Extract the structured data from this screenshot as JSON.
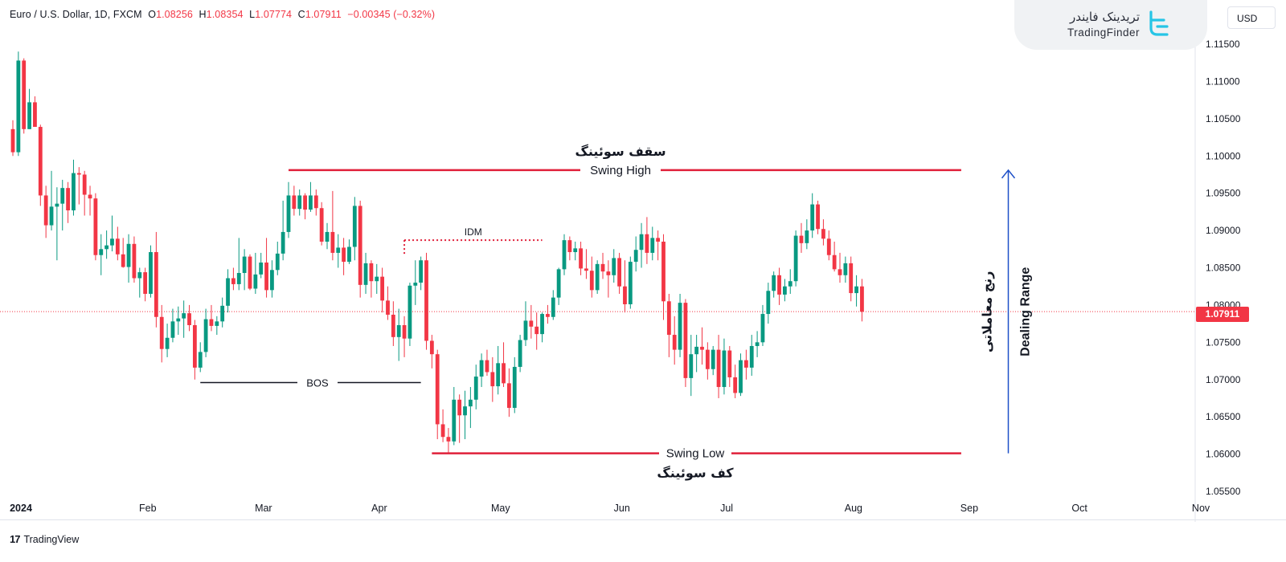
{
  "header": {
    "symbol": "Euro / U.S. Dollar, 1D, FXCM",
    "open_label": "O",
    "open": "1.08256",
    "high_label": "H",
    "high": "1.08354",
    "low_label": "L",
    "low": "1.07774",
    "close_label": "C",
    "close": "1.07911",
    "change": "−0.00345 (−0.32%)"
  },
  "currency_button": "USD",
  "brand": {
    "name_fa": "تریدینک فایندر",
    "name_en": "TradingFinder"
  },
  "footer": {
    "icon": "17",
    "label": "TradingView"
  },
  "last_price_tag": "1.07911",
  "colors": {
    "up": "#089981",
    "down": "#f23645",
    "level": "#e0203a",
    "arrow": "#1e50c8"
  },
  "annotations": {
    "swing_high_fa": "سقف سوئینگ",
    "swing_high_en": "Swing High",
    "swing_low_fa": "کف سوئینگ",
    "swing_low_en": "Swing Low",
    "idm": "IDM",
    "bos": "BOS",
    "range_fa": "رنج معاملاتی",
    "range_en": "Dealing Range"
  },
  "chart_data": {
    "type": "candlestick",
    "symbol": "EURUSD",
    "ylim": [
      1.053,
      1.1185
    ],
    "y_ticks": [
      "1.11500",
      "1.11000",
      "1.10500",
      "1.10000",
      "1.09500",
      "1.09000",
      "1.08500",
      "1.08000",
      "1.07500",
      "1.07000",
      "1.06500",
      "1.06000",
      "1.05500"
    ],
    "x_ticks": [
      {
        "label": "2024",
        "index": 0
      },
      {
        "label": "Feb",
        "index": 23
      },
      {
        "label": "Mar",
        "index": 44
      },
      {
        "label": "Apr",
        "index": 65
      },
      {
        "label": "May",
        "index": 87
      },
      {
        "label": "Jun",
        "index": 109
      },
      {
        "label": "Jul",
        "index": 128
      },
      {
        "label": "Aug",
        "index": 151
      },
      {
        "label": "Sep",
        "index": 172
      },
      {
        "label": "Oct",
        "index": 192
      },
      {
        "label": "Nov",
        "index": 214
      }
    ],
    "last_price": 1.07911,
    "levels": {
      "swing_high": {
        "price": 1.0981,
        "from_index": 50,
        "to_index": 172
      },
      "swing_low": {
        "price": 1.0601,
        "from_index": 76,
        "to_index": 172
      },
      "idm": {
        "price": 1.0887,
        "from_index": 71,
        "to_index": 96
      },
      "bos": {
        "price": 1.0696,
        "from_index": 34,
        "to_index": 74
      },
      "dealing_range": {
        "from": 1.0601,
        "to": 1.0981,
        "index": 175
      }
    },
    "ohlc": [
      [
        1.1036,
        1.1048,
        1.1,
        1.1005
      ],
      [
        1.1005,
        1.114,
        1.1,
        1.1128
      ],
      [
        1.1128,
        1.1131,
        1.103,
        1.1036
      ],
      [
        1.1036,
        1.109,
        1.1036,
        1.1072
      ],
      [
        1.1072,
        1.108,
        1.104,
        1.1039
      ],
      [
        1.1039,
        1.1042,
        1.0933,
        1.0947
      ],
      [
        1.0947,
        1.096,
        1.089,
        1.0907
      ],
      [
        1.0907,
        1.098,
        1.09,
        1.0932
      ],
      [
        1.0932,
        1.0958,
        1.086,
        1.0936
      ],
      [
        1.0936,
        1.0968,
        1.09,
        1.0957
      ],
      [
        1.0957,
        1.0965,
        1.091,
        1.0927
      ],
      [
        1.0927,
        1.0995,
        1.092,
        1.0977
      ],
      [
        1.0977,
        1.0985,
        1.0935,
        1.0975
      ],
      [
        1.0975,
        1.098,
        1.092,
        1.0948
      ],
      [
        1.0948,
        1.096,
        1.092,
        1.0943
      ],
      [
        1.0943,
        1.095,
        1.086,
        1.0867
      ],
      [
        1.0867,
        1.0895,
        1.084,
        1.0875
      ],
      [
        1.0875,
        1.09,
        1.0862,
        1.088
      ],
      [
        1.088,
        1.092,
        1.0872,
        1.0889
      ],
      [
        1.0889,
        1.0905,
        1.086,
        1.0868
      ],
      [
        1.0868,
        1.089,
        1.085,
        1.0851
      ],
      [
        1.0851,
        1.0895,
        1.083,
        1.0882
      ],
      [
        1.0882,
        1.0892,
        1.083,
        1.0836
      ],
      [
        1.0836,
        1.085,
        1.081,
        1.0844
      ],
      [
        1.0844,
        1.085,
        1.0805,
        1.0815
      ],
      [
        1.0815,
        1.088,
        1.081,
        1.0871
      ],
      [
        1.0871,
        1.0898,
        1.077,
        1.0784
      ],
      [
        1.0784,
        1.08,
        1.0723,
        1.0741
      ],
      [
        1.0741,
        1.0775,
        1.073,
        1.0756
      ],
      [
        1.0756,
        1.0795,
        1.075,
        1.0778
      ],
      [
        1.0778,
        1.0798,
        1.076,
        1.0782
      ],
      [
        1.0782,
        1.0806,
        1.0756,
        1.0789
      ],
      [
        1.0789,
        1.08,
        1.0765,
        1.0773
      ],
      [
        1.0773,
        1.078,
        1.07,
        1.0716
      ],
      [
        1.0716,
        1.075,
        1.071,
        1.0737
      ],
      [
        1.0737,
        1.0795,
        1.073,
        1.0781
      ],
      [
        1.0781,
        1.08,
        1.0765,
        1.0772
      ],
      [
        1.0772,
        1.0785,
        1.076,
        1.0778
      ],
      [
        1.0778,
        1.081,
        1.077,
        1.0799
      ],
      [
        1.0799,
        1.0848,
        1.079,
        1.0836
      ],
      [
        1.0836,
        1.085,
        1.082,
        1.0828
      ],
      [
        1.0828,
        1.089,
        1.082,
        1.0843
      ],
      [
        1.0843,
        1.0875,
        1.082,
        1.0865
      ],
      [
        1.0865,
        1.0868,
        1.082,
        1.0822
      ],
      [
        1.0822,
        1.087,
        1.0815,
        1.0841
      ],
      [
        1.0841,
        1.087,
        1.0836,
        1.0857
      ],
      [
        1.0857,
        1.089,
        1.081,
        1.082
      ],
      [
        1.082,
        1.086,
        1.081,
        1.0847
      ],
      [
        1.0847,
        1.0885,
        1.084,
        1.0869
      ],
      [
        1.0869,
        1.094,
        1.086,
        1.0898
      ],
      [
        1.0898,
        1.0965,
        1.089,
        1.0947
      ],
      [
        1.0947,
        1.096,
        1.092,
        1.0929
      ],
      [
        1.0929,
        1.0955,
        1.092,
        1.0947
      ],
      [
        1.0947,
        1.095,
        1.0915,
        1.0928
      ],
      [
        1.0928,
        1.0965,
        1.0925,
        1.0947
      ],
      [
        1.0947,
        1.0955,
        1.092,
        1.093
      ],
      [
        1.093,
        1.0938,
        1.088,
        1.0885
      ],
      [
        1.0885,
        1.091,
        1.0875,
        1.0898
      ],
      [
        1.0898,
        1.0953,
        1.086,
        1.087
      ],
      [
        1.087,
        1.0895,
        1.085,
        1.0877
      ],
      [
        1.0877,
        1.089,
        1.084,
        1.0858
      ],
      [
        1.0858,
        1.0888,
        1.0855,
        1.0878
      ],
      [
        1.0878,
        1.0945,
        1.086,
        1.0933
      ],
      [
        1.0933,
        1.094,
        1.081,
        1.0827
      ],
      [
        1.0827,
        1.087,
        1.0815,
        1.0856
      ],
      [
        1.0856,
        1.086,
        1.081,
        1.0832
      ],
      [
        1.0832,
        1.0855,
        1.0815,
        1.0838
      ],
      [
        1.0838,
        1.085,
        1.079,
        1.0806
      ],
      [
        1.0806,
        1.0825,
        1.078,
        1.0787
      ],
      [
        1.0787,
        1.0805,
        1.0745,
        1.0757
      ],
      [
        1.0757,
        1.0795,
        1.0725,
        1.0773
      ],
      [
        1.0773,
        1.0785,
        1.073,
        1.0755
      ],
      [
        1.0755,
        1.083,
        1.0745,
        1.0826
      ],
      [
        1.0826,
        1.086,
        1.08,
        1.083
      ],
      [
        1.083,
        1.0865,
        1.082,
        1.086
      ],
      [
        1.086,
        1.087,
        1.074,
        1.0752
      ],
      [
        1.0752,
        1.076,
        1.0715,
        1.0734
      ],
      [
        1.0734,
        1.074,
        1.062,
        1.064
      ],
      [
        1.064,
        1.066,
        1.0616,
        1.0623
      ],
      [
        1.0623,
        1.0635,
        1.06,
        1.0617
      ],
      [
        1.0617,
        1.069,
        1.0612,
        1.0673
      ],
      [
        1.0673,
        1.068,
        1.0615,
        1.0652
      ],
      [
        1.0652,
        1.0685,
        1.062,
        1.0664
      ],
      [
        1.0664,
        1.069,
        1.0635,
        1.0673
      ],
      [
        1.0673,
        1.072,
        1.066,
        1.0704
      ],
      [
        1.0704,
        1.0735,
        1.069,
        1.0726
      ],
      [
        1.0726,
        1.074,
        1.0705,
        1.071
      ],
      [
        1.071,
        1.073,
        1.067,
        1.0691
      ],
      [
        1.0691,
        1.0745,
        1.068,
        1.0722
      ],
      [
        1.0722,
        1.075,
        1.069,
        1.0695
      ],
      [
        1.0695,
        1.0715,
        1.065,
        1.0662
      ],
      [
        1.0662,
        1.073,
        1.0655,
        1.0717
      ],
      [
        1.0717,
        1.076,
        1.071,
        1.0753
      ],
      [
        1.0753,
        1.0805,
        1.0745,
        1.0779
      ],
      [
        1.0779,
        1.08,
        1.0755,
        1.0771
      ],
      [
        1.0771,
        1.079,
        1.074,
        1.0761
      ],
      [
        1.0761,
        1.079,
        1.075,
        1.0788
      ],
      [
        1.0788,
        1.08,
        1.0775,
        1.0784
      ],
      [
        1.0784,
        1.082,
        1.078,
        1.081
      ],
      [
        1.081,
        1.085,
        1.08,
        1.0848
      ],
      [
        1.0848,
        1.0895,
        1.084,
        1.0887
      ],
      [
        1.0887,
        1.0892,
        1.086,
        1.0871
      ],
      [
        1.0871,
        1.0885,
        1.086,
        1.0876
      ],
      [
        1.0876,
        1.0885,
        1.084,
        1.0849
      ],
      [
        1.0849,
        1.0875,
        1.0835,
        1.0846
      ],
      [
        1.0846,
        1.0865,
        1.081,
        1.082
      ],
      [
        1.082,
        1.086,
        1.0815,
        1.0855
      ],
      [
        1.0855,
        1.087,
        1.0835,
        1.0845
      ],
      [
        1.0845,
        1.086,
        1.081,
        1.084
      ],
      [
        1.084,
        1.0875,
        1.083,
        1.0863
      ],
      [
        1.0863,
        1.087,
        1.0815,
        1.0825
      ],
      [
        1.0825,
        1.086,
        1.079,
        1.0801
      ],
      [
        1.0801,
        1.0865,
        1.0795,
        1.0858
      ],
      [
        1.0858,
        1.0892,
        1.0845,
        1.0874
      ],
      [
        1.0874,
        1.091,
        1.085,
        1.0895
      ],
      [
        1.0895,
        1.0918,
        1.0855,
        1.087
      ],
      [
        1.087,
        1.0905,
        1.086,
        1.089
      ],
      [
        1.089,
        1.09,
        1.086,
        1.0885
      ],
      [
        1.0885,
        1.0895,
        1.078,
        1.0805
      ],
      [
        1.0805,
        1.0815,
        1.073,
        1.076
      ],
      [
        1.076,
        1.0785,
        1.072,
        1.074
      ],
      [
        1.074,
        1.0815,
        1.073,
        1.0803
      ],
      [
        1.0803,
        1.0808,
        1.069,
        1.0702
      ],
      [
        1.0702,
        1.076,
        1.0678,
        1.0734
      ],
      [
        1.0734,
        1.076,
        1.071,
        1.0744
      ],
      [
        1.0744,
        1.077,
        1.072,
        1.074
      ],
      [
        1.074,
        1.075,
        1.07,
        1.0714
      ],
      [
        1.0714,
        1.0745,
        1.0706,
        1.074
      ],
      [
        1.074,
        1.076,
        1.0675,
        1.069
      ],
      [
        1.069,
        1.0755,
        1.068,
        1.0739
      ],
      [
        1.0739,
        1.0745,
        1.069,
        1.0703
      ],
      [
        1.0703,
        1.072,
        1.0675,
        1.0682
      ],
      [
        1.0682,
        1.0735,
        1.0678,
        1.0726
      ],
      [
        1.0726,
        1.074,
        1.07,
        1.0716
      ],
      [
        1.0716,
        1.076,
        1.0705,
        1.0745
      ],
      [
        1.0745,
        1.0765,
        1.073,
        1.075
      ],
      [
        1.075,
        1.08,
        1.0745,
        1.0788
      ],
      [
        1.0788,
        1.083,
        1.0775,
        1.0819
      ],
      [
        1.0819,
        1.0845,
        1.081,
        1.084
      ],
      [
        1.084,
        1.085,
        1.08,
        1.0814
      ],
      [
        1.0814,
        1.0835,
        1.0805,
        1.0825
      ],
      [
        1.0825,
        1.0848,
        1.0815,
        1.0832
      ],
      [
        1.0832,
        1.09,
        1.0825,
        1.0893
      ],
      [
        1.0893,
        1.091,
        1.087,
        1.0883
      ],
      [
        1.0883,
        1.0915,
        1.0875,
        1.09
      ],
      [
        1.09,
        1.095,
        1.089,
        1.0935
      ],
      [
        1.0935,
        1.094,
        1.0895,
        1.0902
      ],
      [
        1.0902,
        1.0915,
        1.088,
        1.0889
      ],
      [
        1.0889,
        1.09,
        1.086,
        1.0867
      ],
      [
        1.0867,
        1.0885,
        1.0845,
        1.0848
      ],
      [
        1.0848,
        1.087,
        1.083,
        1.084
      ],
      [
        1.084,
        1.0865,
        1.083,
        1.0856
      ],
      [
        1.0856,
        1.0865,
        1.0805,
        1.0816
      ],
      [
        1.0816,
        1.084,
        1.0798,
        1.0825
      ],
      [
        1.0825,
        1.0835,
        1.0778,
        1.0791
      ]
    ]
  }
}
